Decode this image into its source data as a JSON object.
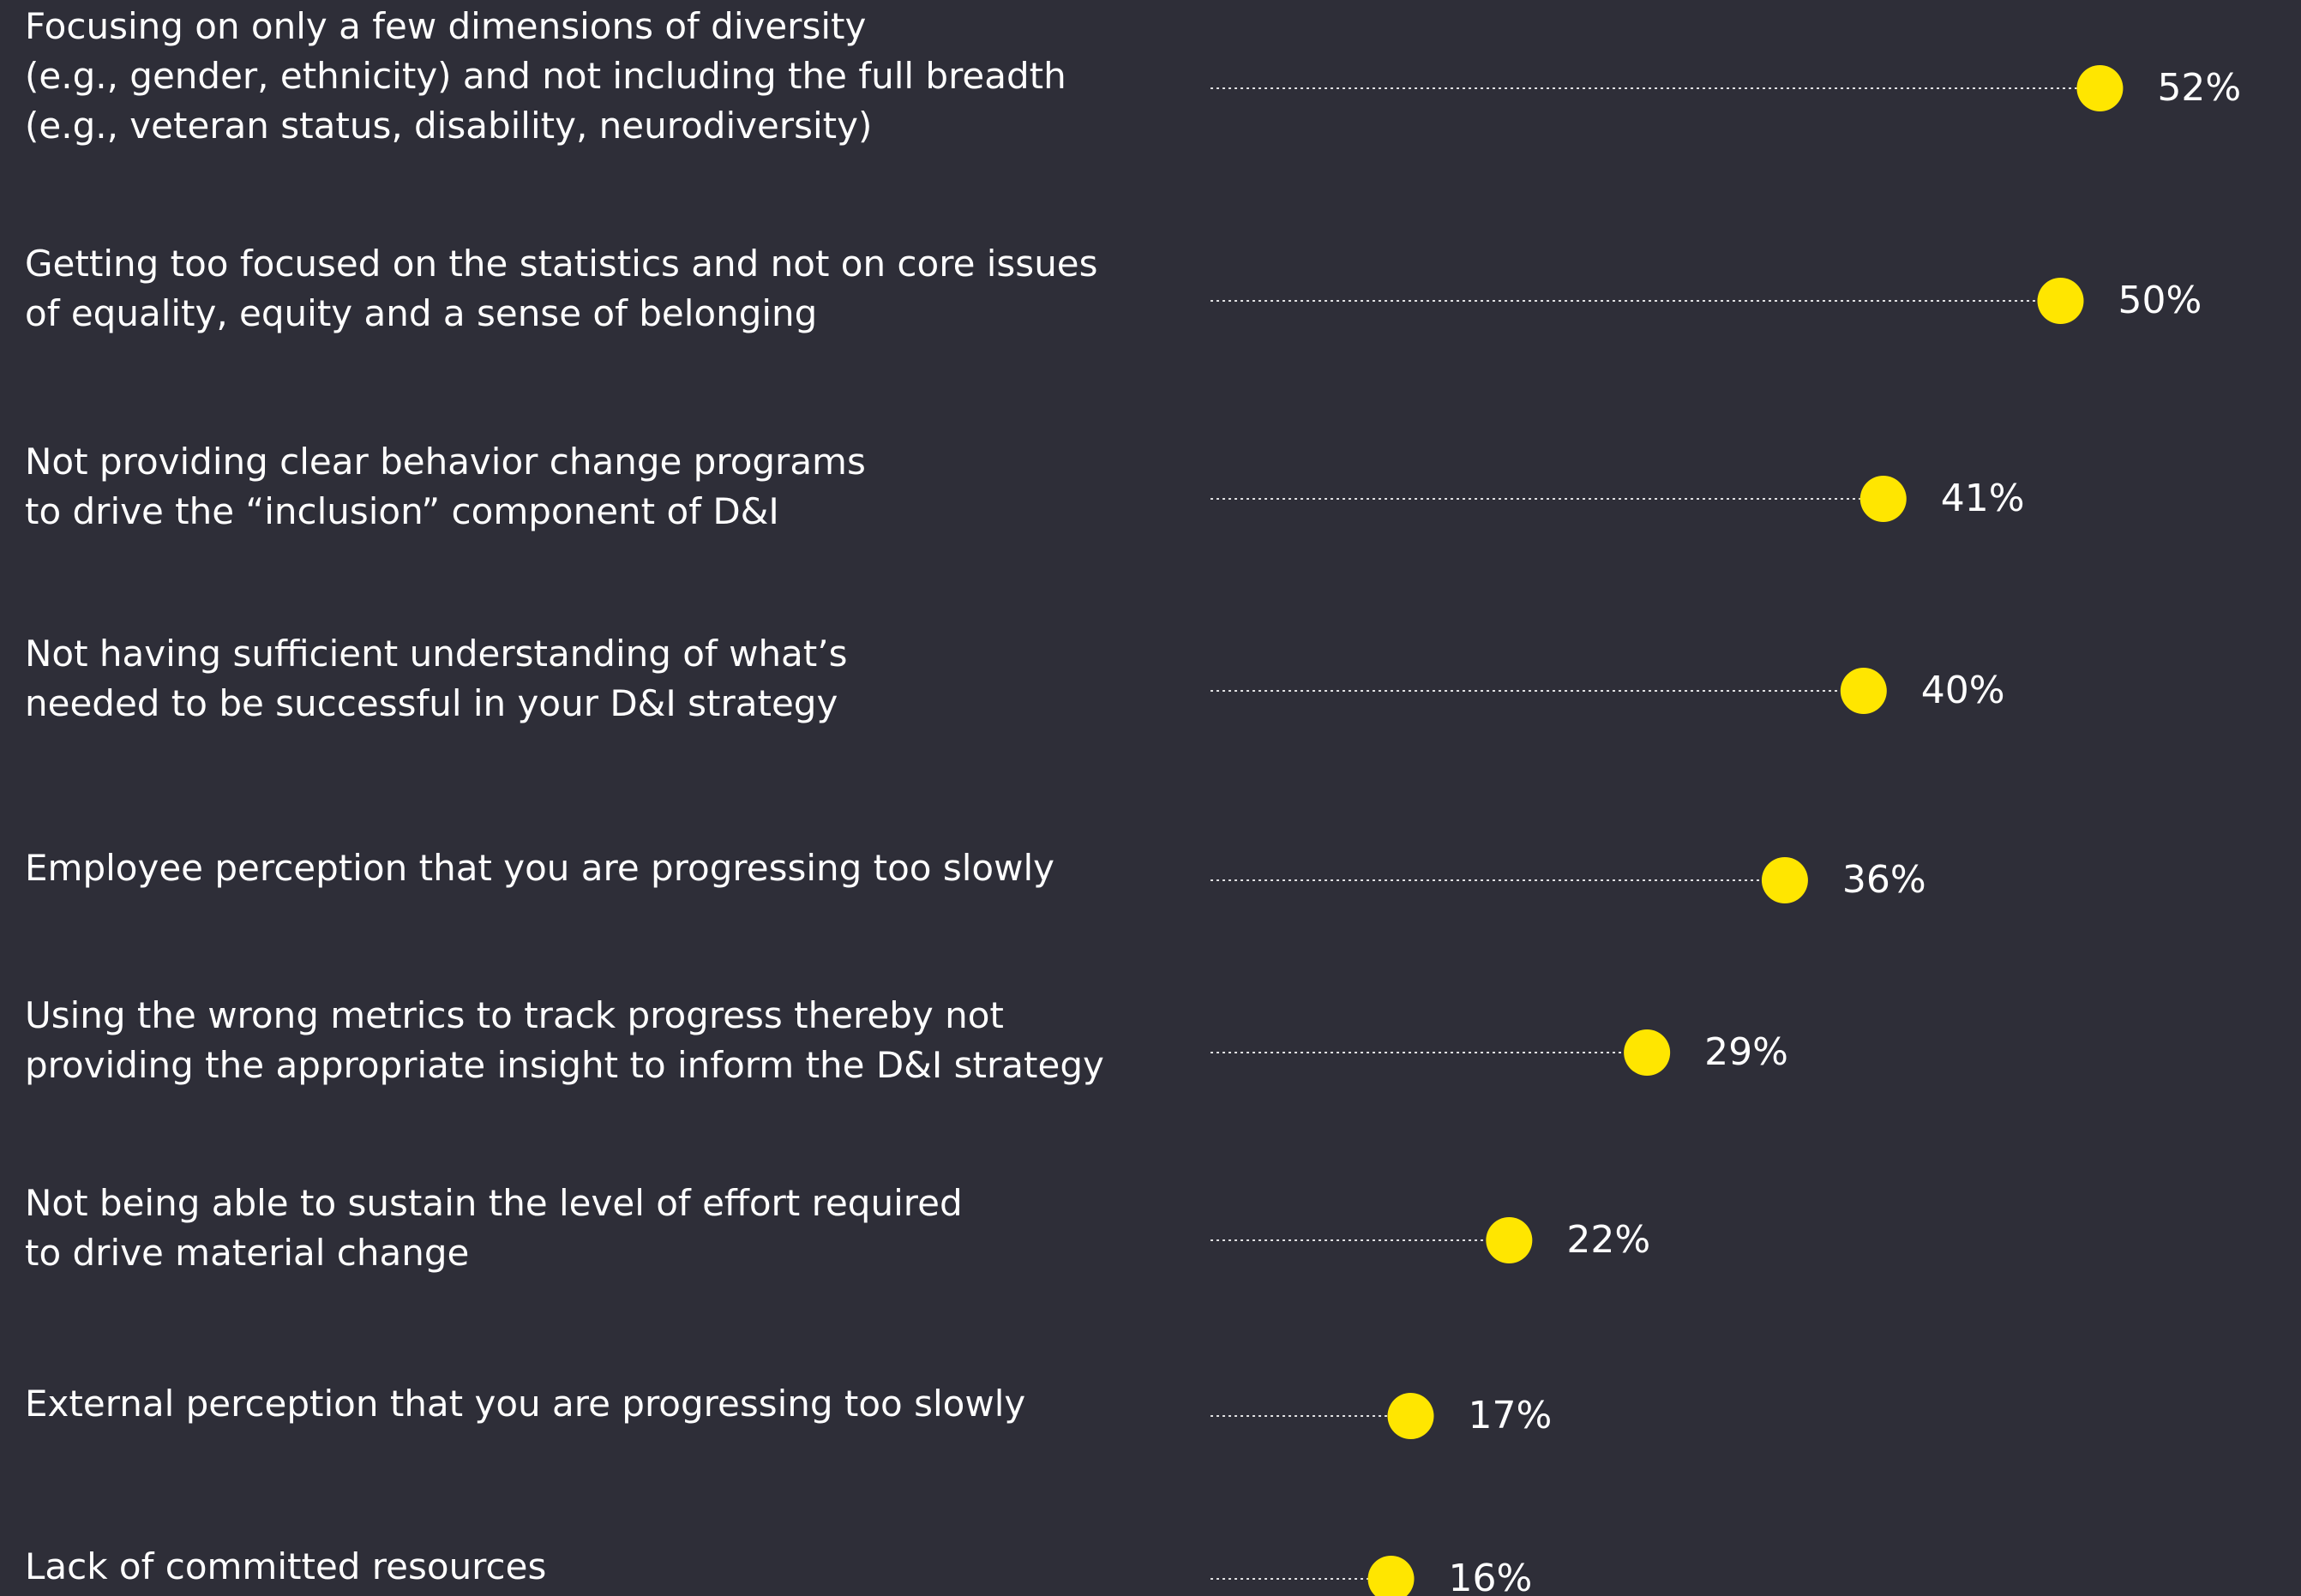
{
  "chart_data": {
    "type": "lollipop",
    "categories": [
      "Focusing on only a few dimensions of diversity\n(e.g., gender, ethnicity) and not including the full breadth\n(e.g., veteran status, disability, neurodiversity)",
      "Getting too focused on the statistics and not on core issues\nof equality, equity and a sense of belonging",
      "Not providing clear behavior change programs\nto drive the “inclusion” component of D&I",
      "Not having sufficient understanding of what’s\nneeded to be successful in your D&I strategy",
      "Employee perception that you are progressing too slowly",
      "Using the wrong metrics to track progress thereby not\nproviding the appropriate insight to inform the D&I strategy",
      "Not being able to sustain the level of effort required\nto drive material change",
      "External perception that you are progressing too slowly",
      "Lack of committed resources"
    ],
    "values": [
      52,
      50,
      41,
      40,
      36,
      29,
      22,
      17,
      16
    ],
    "value_labels": [
      "52%",
      "50%",
      "41%",
      "40%",
      "36%",
      "29%",
      "22%",
      "17%",
      "16%"
    ],
    "color": "#ffe600"
  }
}
